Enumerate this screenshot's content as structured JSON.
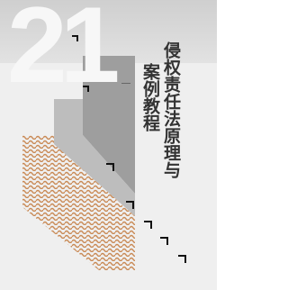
{
  "cover": {
    "series_number": "21",
    "title_lines": [
      "侵权责任法原理与",
      "案例教程"
    ]
  }
}
